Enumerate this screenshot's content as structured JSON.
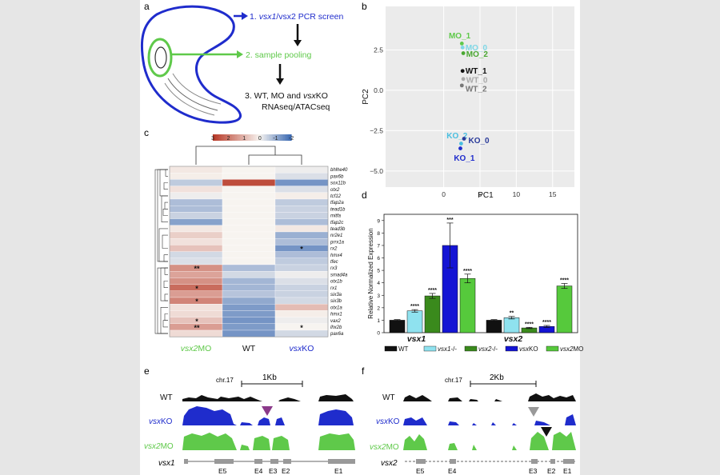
{
  "panels": {
    "a": "a",
    "b": "b",
    "c": "c",
    "d": "d",
    "e": "e",
    "f": "f"
  },
  "panel_a": {
    "step1_pre": "1. ",
    "step1_gene1": "vsx1",
    "step1_mid": "/vsx2 PCR screen",
    "step2": "2. sample pooling",
    "step3_pre": "3. WT, MO and ",
    "step3_gene": "vsx",
    "step3_post": "KO",
    "step3_line2": "RNAseq/ATACseq",
    "colors": {
      "blue": "#1f2ccc",
      "green": "#5fc94a",
      "black": "#111111"
    }
  },
  "chart_data": [
    {
      "panel": "b",
      "type": "scatter",
      "xlabel": "PC1",
      "ylabel": "PC2",
      "xlim": [
        -8,
        18
      ],
      "ylim": [
        -6,
        5.2
      ],
      "xticks": [
        0,
        5,
        10,
        15
      ],
      "yticks": [
        -5.0,
        -2.5,
        0.0,
        2.5
      ],
      "ytick_labels": [
        "−5.0",
        "−2.5",
        "0.0",
        "2.5"
      ],
      "points": [
        {
          "label": "MO_1",
          "x": 2.5,
          "y": 2.9,
          "color": "#5fc94a",
          "lx": 0.7,
          "ly": 3.4
        },
        {
          "label": "MO_0",
          "x": 2.6,
          "y": 2.65,
          "color": "#7fd7e6",
          "lx": 3.0,
          "ly": 2.65
        },
        {
          "label": "MO_2",
          "x": 2.7,
          "y": 2.3,
          "color": "#4aa832",
          "lx": 3.1,
          "ly": 2.25
        },
        {
          "label": "WT_1",
          "x": 2.6,
          "y": 1.2,
          "color": "#111111",
          "lx": 3.0,
          "ly": 1.2
        },
        {
          "label": "WT_0",
          "x": 2.7,
          "y": 0.7,
          "color": "#aaaaaa",
          "lx": 3.1,
          "ly": 0.65
        },
        {
          "label": "WT_2",
          "x": 2.5,
          "y": 0.3,
          "color": "#777777",
          "lx": 3.0,
          "ly": 0.1
        },
        {
          "label": "KO_2",
          "x": 2.4,
          "y": -3.3,
          "color": "#49bfe0",
          "lx": 0.4,
          "ly": -2.8
        },
        {
          "label": "KO_0",
          "x": 2.8,
          "y": -3.0,
          "color": "#2a3b9a",
          "lx": 3.4,
          "ly": -3.1
        },
        {
          "label": "KO_1",
          "x": 2.3,
          "y": -3.6,
          "color": "#1f2ccc",
          "lx": 1.4,
          "ly": -4.2
        }
      ]
    },
    {
      "panel": "c",
      "type": "heatmap",
      "legend_ticks": [
        "3",
        "2",
        "1",
        "0",
        "-1",
        "-2"
      ],
      "columns": [
        {
          "label": "vsx2MO",
          "gene": "vsx2",
          "suffix": "MO",
          "color": "#5fc94a"
        },
        {
          "label": "WT",
          "gene": "",
          "suffix": "WT",
          "color": "#111111"
        },
        {
          "label": "vsxKO",
          "gene": "vsx",
          "suffix": "KO",
          "color": "#1f2ccc"
        }
      ],
      "rows": [
        "bhlhe40",
        "pax6b",
        "sox11b",
        "otx2",
        "tcf12",
        "tfap2a",
        "tead1b",
        "mitfa",
        "tfap2c",
        "tead3b",
        "nr2e1",
        "prrx1a",
        "rx2",
        "hmx4",
        "tfec",
        "rx3",
        "smad4a",
        "otx1b",
        "rx1",
        "six3a",
        "six3b",
        "otx1a",
        "hmx1",
        "vax2",
        "lhx2b",
        "pax6a"
      ],
      "values": [
        [
          0.2,
          0,
          -0.1
        ],
        [
          0.1,
          0,
          -0.3
        ],
        [
          -0.6,
          2.7,
          -1.4
        ],
        [
          0.3,
          0,
          -0.3
        ],
        [
          -0.1,
          0,
          0.1
        ],
        [
          -0.8,
          0,
          -0.6
        ],
        [
          -0.8,
          0,
          -0.5
        ],
        [
          -0.5,
          0,
          -0.5
        ],
        [
          -1.2,
          0,
          -0.8
        ],
        [
          0.2,
          0,
          0.2
        ],
        [
          0.6,
          0,
          -1.0
        ],
        [
          0.3,
          0,
          -0.8
        ],
        [
          0.8,
          0,
          -1.4
        ],
        [
          -0.4,
          0,
          -0.8
        ],
        [
          -0.3,
          0,
          -0.6
        ],
        [
          1.6,
          -0.8,
          -0.5
        ],
        [
          1.3,
          -0.4,
          -0.1
        ],
        [
          1.6,
          -0.9,
          -0.3
        ],
        [
          2.2,
          -0.9,
          -0.5
        ],
        [
          1.4,
          -0.7,
          -0.5
        ],
        [
          1.8,
          -1.1,
          -0.4
        ],
        [
          0.3,
          -1.3,
          0.9
        ],
        [
          0.4,
          -1.3,
          0.1
        ],
        [
          0.8,
          -1.4,
          -0.1
        ],
        [
          1.4,
          -1.3,
          0.0
        ],
        [
          0.4,
          -1.4,
          -0.4
        ]
      ],
      "stars": [
        {
          "row": 15,
          "col": 0,
          "text": "**"
        },
        {
          "row": 18,
          "col": 0,
          "text": "*"
        },
        {
          "row": 20,
          "col": 0,
          "text": "*"
        },
        {
          "row": 23,
          "col": 0,
          "text": "*"
        },
        {
          "row": 24,
          "col": 0,
          "text": "**"
        },
        {
          "row": 12,
          "col": 2,
          "text": "*"
        },
        {
          "row": 24,
          "col": 2,
          "text": "*"
        }
      ],
      "colors": {
        "high": "#b83a28",
        "mid": "#f7f4f0",
        "low": "#3d6bb3"
      }
    },
    {
      "panel": "d",
      "type": "bar",
      "ylabel": "Relative Normalized Expression",
      "ylim": [
        0,
        9.5
      ],
      "yticks": [
        0,
        1,
        2,
        3,
        4,
        5,
        6,
        7,
        8,
        9
      ],
      "groups": [
        {
          "gene": "vsx1"
        },
        {
          "gene": "vsx2"
        }
      ],
      "series": [
        {
          "name": "WT",
          "color": "#111111",
          "values": [
            1.0,
            1.0
          ],
          "err": [
            0.05,
            0.05
          ],
          "sig": [
            "",
            ""
          ]
        },
        {
          "name": "vsx1-/-",
          "gene": "vsx1",
          "suffix": "-/-",
          "color": "#8fe2ef",
          "values": [
            1.75,
            1.2
          ],
          "err": [
            0.1,
            0.1
          ],
          "sig": [
            "****",
            "**"
          ]
        },
        {
          "name": "vsx2-/-",
          "gene": "vsx2",
          "suffix": "-/-",
          "color": "#3a8a1c",
          "values": [
            2.95,
            0.38
          ],
          "err": [
            0.2,
            0.05
          ],
          "sig": [
            "****",
            "****"
          ]
        },
        {
          "name": "vsxKO",
          "gene": "vsx",
          "suffix": "KO",
          "color": "#1414d4",
          "values": [
            7.0,
            0.5
          ],
          "err": [
            1.8,
            0.08
          ],
          "sig": [
            "***",
            "****"
          ]
        },
        {
          "name": "vsx2MO",
          "gene": "vsx2",
          "suffix": "MO",
          "color": "#56c93c",
          "values": [
            4.35,
            3.75
          ],
          "err": [
            0.35,
            0.2
          ],
          "sig": [
            "****",
            "****"
          ]
        }
      ]
    }
  ],
  "panel_e": {
    "chrom": "chr.17",
    "scale": "1Kb",
    "tracks": [
      {
        "gene": "",
        "suffix": "WT",
        "color": "#111111"
      },
      {
        "gene": "vsx",
        "suffix": "KO",
        "color": "#1f2ccc"
      },
      {
        "gene": "vsx2",
        "suffix": "MO",
        "color": "#5fc94a"
      }
    ],
    "gene_name": "vsx1",
    "exons": [
      "E5",
      "E4",
      "E3",
      "E2",
      "E1"
    ],
    "arrow_color": "#8b3a8a"
  },
  "panel_f": {
    "chrom": "chr.17",
    "scale": "2Kb",
    "tracks": [
      {
        "gene": "",
        "suffix": "WT",
        "color": "#111111"
      },
      {
        "gene": "vsx",
        "suffix": "KO",
        "color": "#1f2ccc"
      },
      {
        "gene": "vsx2",
        "suffix": "MO",
        "color": "#5fc94a"
      }
    ],
    "gene_name": "vsx2",
    "exons": [
      "E5",
      "E4",
      "E3",
      "E2",
      "E1"
    ],
    "arrow_gray": "#999999",
    "arrow_black": "#111111"
  }
}
